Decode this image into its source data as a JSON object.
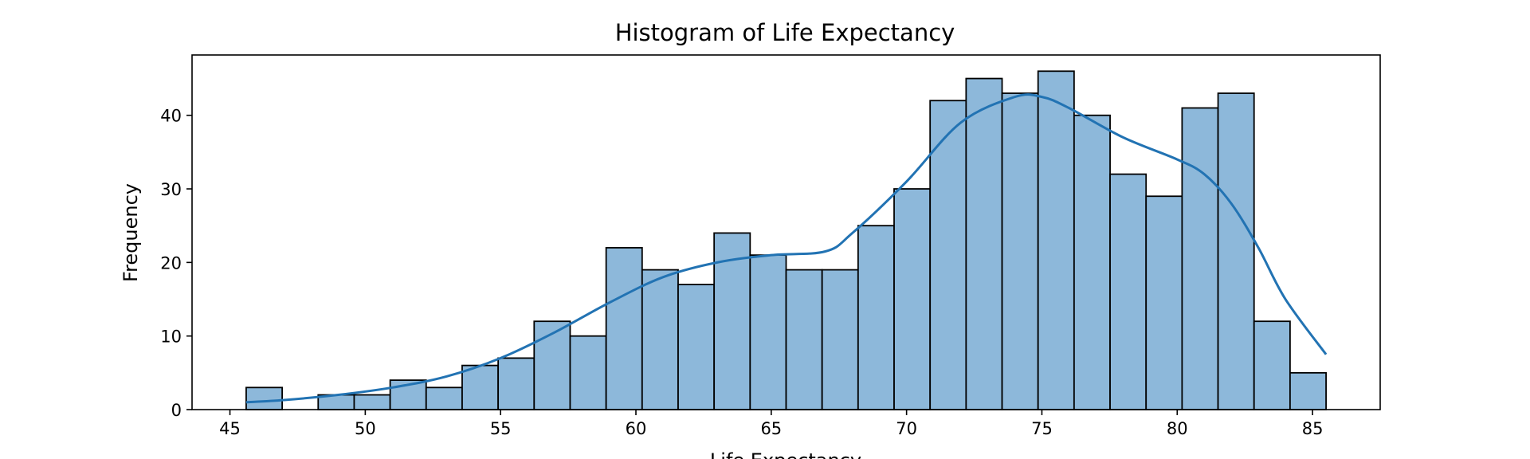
{
  "chart_data": {
    "type": "bar",
    "title": "Histogram of Life Expectancy",
    "xlabel": "Life Expectancy",
    "ylabel": "Frequency",
    "xlim": [
      43.6,
      87.5
    ],
    "ylim": [
      0,
      48.2
    ],
    "xticks": [
      45,
      50,
      55,
      60,
      65,
      70,
      75,
      80,
      85
    ],
    "yticks": [
      0,
      10,
      20,
      30,
      40
    ],
    "bin_edges": [
      45.6,
      46.93,
      48.26,
      49.59,
      50.92,
      52.25,
      53.58,
      54.91,
      56.24,
      57.57,
      58.9,
      60.23,
      61.56,
      62.89,
      64.22,
      65.55,
      66.88,
      68.21,
      69.54,
      70.87,
      72.2,
      73.53,
      74.86,
      76.19,
      77.52,
      78.85,
      80.18,
      81.51,
      82.84,
      84.17,
      85.5
    ],
    "values": [
      3,
      0,
      2,
      2,
      4,
      3,
      6,
      7,
      12,
      10,
      22,
      19,
      17,
      24,
      21,
      19,
      19,
      25,
      30,
      42,
      45,
      43,
      46,
      40,
      32,
      29,
      41,
      43,
      12,
      5
    ],
    "kde": {
      "x": [
        45.6,
        47,
        49,
        51,
        53,
        55,
        57,
        59,
        61,
        63,
        65,
        67,
        68,
        70,
        72,
        74,
        75,
        76,
        78,
        80,
        81,
        82,
        83,
        84,
        85.5
      ],
      "y": [
        1,
        1.3,
        2,
        3,
        4.5,
        7,
        10.5,
        14.5,
        18,
        20,
        21,
        21.5,
        24,
        31,
        39,
        42.5,
        42.5,
        41,
        37,
        34,
        32,
        28,
        22,
        15,
        7.5
      ]
    },
    "colors": {
      "bar_fill": "#8db8da",
      "bar_edge": "#000000",
      "kde_line": "#2273b3"
    },
    "grid": false,
    "legend": "none"
  }
}
